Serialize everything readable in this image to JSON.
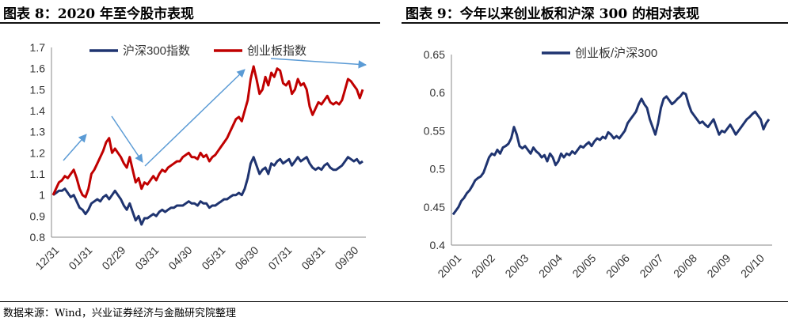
{
  "header": {
    "title_left": "图表 8：2020 年至今股市表现",
    "title_right": "图表 9：今年以来创业板和沪深 300 的相对表现"
  },
  "footer": {
    "source": "数据来源：Wind，兴业证券经济与金融研究院整理"
  },
  "chart_data": [
    {
      "type": "line",
      "ylim": [
        0.8,
        1.7
      ],
      "yticks": [
        "0.8",
        "0.9",
        "1",
        "1.1",
        "1.2",
        "1.3",
        "1.4",
        "1.5",
        "1.6",
        "1.7"
      ],
      "xticks": [
        "12/31",
        "01/31",
        "02/29",
        "03/31",
        "04/30",
        "05/31",
        "06/30",
        "07/31",
        "08/31",
        "09/30"
      ],
      "legend_position": "top",
      "arrows_color": "#5b9bd5",
      "series": [
        {
          "name": "沪深300指数",
          "color": "#1f3470",
          "values": [
            1.0,
            1.01,
            1.02,
            1.02,
            1.03,
            1.01,
            0.99,
            1.0,
            0.97,
            0.94,
            0.93,
            0.91,
            0.93,
            0.96,
            0.97,
            0.98,
            0.97,
            0.99,
            1.0,
            0.98,
            1.0,
            1.02,
            1.0,
            0.98,
            0.95,
            0.93,
            0.96,
            0.92,
            0.88,
            0.9,
            0.86,
            0.89,
            0.89,
            0.9,
            0.91,
            0.9,
            0.92,
            0.93,
            0.92,
            0.93,
            0.94,
            0.94,
            0.95,
            0.95,
            0.95,
            0.96,
            0.97,
            0.96,
            0.96,
            0.95,
            0.97,
            0.96,
            0.96,
            0.94,
            0.95,
            0.95,
            0.96,
            0.97,
            0.98,
            0.98,
            0.99,
            1.0,
            1.0,
            1.01,
            1.0,
            1.03,
            1.08,
            1.15,
            1.18,
            1.14,
            1.1,
            1.12,
            1.13,
            1.1,
            1.15,
            1.14,
            1.16,
            1.17,
            1.15,
            1.16,
            1.17,
            1.14,
            1.16,
            1.18,
            1.16,
            1.17,
            1.18,
            1.15,
            1.13,
            1.12,
            1.13,
            1.12,
            1.14,
            1.15,
            1.13,
            1.12,
            1.12,
            1.13,
            1.14,
            1.16,
            1.18,
            1.17,
            1.16,
            1.17,
            1.15,
            1.16
          ]
        },
        {
          "name": "创业板指数",
          "color": "#c00000",
          "values": [
            1.0,
            1.03,
            1.06,
            1.07,
            1.09,
            1.08,
            1.1,
            1.12,
            1.08,
            1.03,
            1.0,
            0.99,
            1.03,
            1.1,
            1.12,
            1.15,
            1.18,
            1.21,
            1.25,
            1.27,
            1.2,
            1.22,
            1.2,
            1.18,
            1.15,
            1.13,
            1.18,
            1.12,
            1.06,
            1.08,
            1.03,
            1.06,
            1.05,
            1.07,
            1.09,
            1.07,
            1.1,
            1.12,
            1.11,
            1.13,
            1.14,
            1.15,
            1.16,
            1.16,
            1.18,
            1.19,
            1.2,
            1.18,
            1.18,
            1.17,
            1.2,
            1.18,
            1.19,
            1.16,
            1.18,
            1.19,
            1.21,
            1.23,
            1.25,
            1.27,
            1.3,
            1.33,
            1.36,
            1.37,
            1.35,
            1.4,
            1.45,
            1.55,
            1.61,
            1.55,
            1.48,
            1.5,
            1.56,
            1.52,
            1.58,
            1.56,
            1.6,
            1.59,
            1.53,
            1.52,
            1.54,
            1.48,
            1.5,
            1.55,
            1.52,
            1.53,
            1.5,
            1.42,
            1.38,
            1.41,
            1.44,
            1.43,
            1.45,
            1.47,
            1.44,
            1.43,
            1.44,
            1.43,
            1.45,
            1.5,
            1.55,
            1.54,
            1.52,
            1.5,
            1.46,
            1.5
          ]
        }
      ]
    },
    {
      "type": "line",
      "ylim": [
        0.4,
        0.65
      ],
      "yticks": [
        "0.4",
        "0.45",
        "0.5",
        "0.55",
        "0.6",
        "0.65"
      ],
      "xticks": [
        "20/01",
        "20/02",
        "20/03",
        "20/04",
        "20/05",
        "20/06",
        "20/07",
        "20/08",
        "20/09",
        "20/10"
      ],
      "legend_position": "top",
      "series": [
        {
          "name": "创业板/沪深300",
          "color": "#1f3470",
          "values": [
            0.44,
            0.445,
            0.45,
            0.458,
            0.462,
            0.468,
            0.472,
            0.478,
            0.485,
            0.488,
            0.49,
            0.495,
            0.505,
            0.515,
            0.52,
            0.518,
            0.525,
            0.52,
            0.528,
            0.53,
            0.533,
            0.54,
            0.555,
            0.545,
            0.53,
            0.527,
            0.53,
            0.525,
            0.52,
            0.528,
            0.523,
            0.52,
            0.515,
            0.518,
            0.51,
            0.52,
            0.515,
            0.505,
            0.51,
            0.52,
            0.515,
            0.52,
            0.518,
            0.523,
            0.52,
            0.525,
            0.53,
            0.528,
            0.532,
            0.535,
            0.53,
            0.536,
            0.54,
            0.538,
            0.542,
            0.54,
            0.548,
            0.545,
            0.54,
            0.543,
            0.54,
            0.545,
            0.55,
            0.56,
            0.565,
            0.57,
            0.575,
            0.585,
            0.592,
            0.585,
            0.58,
            0.565,
            0.555,
            0.545,
            0.56,
            0.58,
            0.592,
            0.595,
            0.59,
            0.585,
            0.588,
            0.592,
            0.595,
            0.6,
            0.598,
            0.585,
            0.575,
            0.57,
            0.565,
            0.56,
            0.562,
            0.558,
            0.555,
            0.56,
            0.565,
            0.555,
            0.545,
            0.55,
            0.548,
            0.553,
            0.558,
            0.552,
            0.545,
            0.55,
            0.555,
            0.56,
            0.565,
            0.568,
            0.572,
            0.575,
            0.57,
            0.565,
            0.552,
            0.56,
            0.565
          ]
        }
      ]
    }
  ]
}
